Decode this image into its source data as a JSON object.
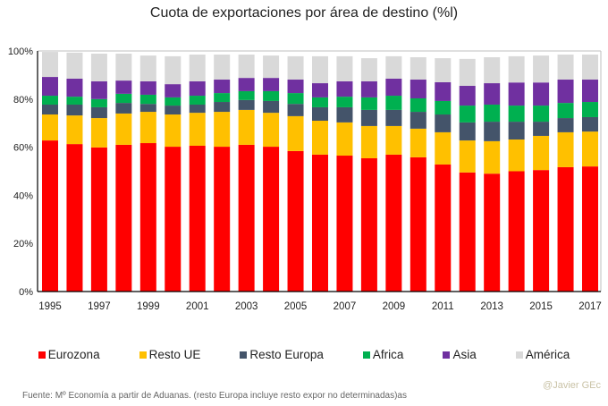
{
  "chart_data": {
    "type": "bar",
    "stacked": true,
    "title": "Cuota de exportaciones por área  de destino (%l)",
    "xlabel": "",
    "ylabel": "",
    "ylim": [
      0,
      100
    ],
    "yticks": [
      "0%",
      "20%",
      "40%",
      "60%",
      "80%",
      "100%"
    ],
    "ytick_values": [
      0,
      20,
      40,
      60,
      80,
      100
    ],
    "categories": [
      "1995",
      "1996",
      "1997",
      "1998",
      "1999",
      "2000",
      "2001",
      "2002",
      "2003",
      "2004",
      "2005",
      "2006",
      "2007",
      "2008",
      "2009",
      "2010",
      "2011",
      "2012",
      "2013",
      "2014",
      "2015",
      "2016",
      "2017"
    ],
    "xtick_labels": [
      "1995",
      "",
      "1997",
      "",
      "1999",
      "",
      "2001",
      "",
      "2003",
      "",
      "2005",
      "",
      "2007",
      "",
      "2009",
      "",
      "2011",
      "",
      "2013",
      "",
      "2015",
      "",
      "2017"
    ],
    "legend_position": "bottom",
    "series": [
      {
        "name": "Eurozona",
        "color": "#ff0000",
        "values": [
          62.8,
          61.3,
          59.9,
          61.0,
          61.7,
          60.2,
          60.6,
          60.2,
          61.0,
          60.2,
          58.4,
          56.9,
          56.5,
          55.4,
          56.9,
          55.8,
          52.8,
          49.5,
          49.0,
          50.0,
          50.5,
          51.7,
          52.0
        ]
      },
      {
        "name": "Resto UE",
        "color": "#ffc000",
        "values": [
          10.8,
          11.9,
          12.2,
          13.0,
          13.0,
          13.4,
          13.7,
          14.5,
          14.5,
          14.1,
          14.5,
          14.1,
          13.8,
          13.4,
          11.9,
          11.9,
          13.4,
          13.3,
          13.5,
          13.2,
          14.2,
          14.5,
          14.5
        ]
      },
      {
        "name": "Resto Europa",
        "color": "#44546a",
        "values": [
          4.1,
          4.5,
          4.5,
          4.4,
          3.3,
          3.7,
          3.4,
          4.1,
          4.1,
          4.9,
          5.1,
          5.6,
          6.3,
          6.7,
          6.7,
          7.0,
          7.4,
          7.5,
          8.1,
          7.4,
          5.9,
          5.9,
          6.0
        ]
      },
      {
        "name": "Africa",
        "color": "#00b050",
        "values": [
          3.7,
          3.3,
          3.4,
          3.8,
          3.8,
          3.4,
          3.7,
          3.7,
          3.7,
          4.1,
          4.5,
          4.1,
          4.4,
          5.2,
          5.9,
          5.6,
          5.6,
          7.0,
          7.1,
          6.7,
          6.7,
          6.3,
          6.3
        ]
      },
      {
        "name": "Asia",
        "color": "#7030a0",
        "values": [
          7.8,
          7.5,
          7.4,
          5.5,
          5.6,
          5.5,
          6.0,
          5.6,
          5.5,
          5.5,
          5.6,
          5.9,
          6.4,
          6.7,
          7.1,
          7.8,
          7.8,
          8.2,
          8.9,
          9.6,
          9.6,
          9.7,
          9.3
        ]
      },
      {
        "name": "América",
        "color": "#d9d9d9",
        "values": [
          10.4,
          10.8,
          11.5,
          11.2,
          10.7,
          11.6,
          11.1,
          10.4,
          9.7,
          9.3,
          9.7,
          11.2,
          10.4,
          9.6,
          9.3,
          9.3,
          10.0,
          11.2,
          10.8,
          10.9,
          11.2,
          10.4,
          10.4
        ]
      }
    ]
  },
  "footer": {
    "source": "Fuente: Mº Economía a partir de Aduanas. (resto Europa incluye resto expor no determinadas)as",
    "credit": "@Javier GEc"
  }
}
